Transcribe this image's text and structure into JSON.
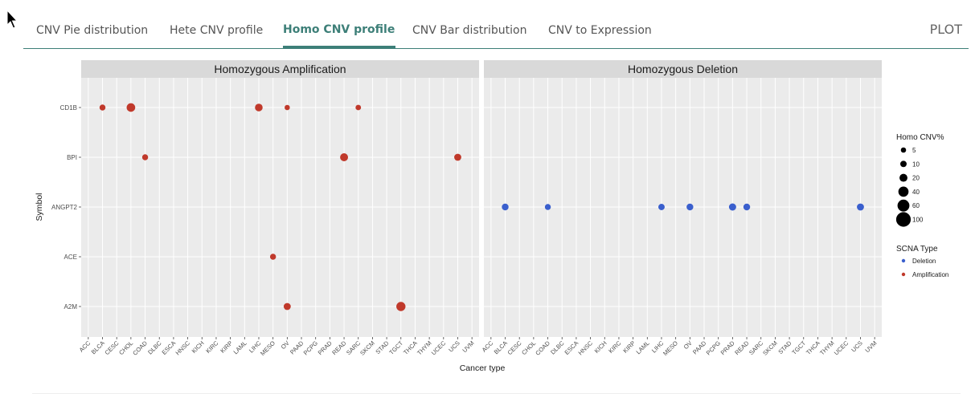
{
  "tabs": [
    {
      "label": "CNV Pie distribution"
    },
    {
      "label": "Hete CNV profile"
    },
    {
      "label": "Homo CNV profile",
      "active": true
    },
    {
      "label": "CNV Bar distribution"
    },
    {
      "label": "CNV to Expression"
    }
  ],
  "tab_bar_title": "PLOT",
  "colors": {
    "accent": "#3d7f78",
    "amplification": "#c0392b",
    "deletion": "#3a5fcd"
  },
  "chart_data": {
    "type": "scatter",
    "xlabel": "Cancer type",
    "ylabel": "Symbol",
    "facets": [
      "Homozygous Amplification",
      "Homozygous Deletion"
    ],
    "x_categories": [
      "ACC",
      "BLCA",
      "CESC",
      "CHOL",
      "COAD",
      "DLBC",
      "ESCA",
      "HNSC",
      "KICH",
      "KIRC",
      "KIRP",
      "LAML",
      "LIHC",
      "MESO",
      "OV",
      "PAAD",
      "PCPG",
      "PRAD",
      "READ",
      "SARC",
      "SKCM",
      "STAD",
      "TGCT",
      "THCA",
      "THYM",
      "UCEC",
      "UCS",
      "UVM"
    ],
    "y_categories": [
      "A2M",
      "ACE",
      "ANGPT2",
      "BPI",
      "CD1B"
    ],
    "size_legend": {
      "title": "Homo CNV%",
      "values": [
        5,
        10,
        20,
        40,
        60,
        100
      ]
    },
    "color_legend": {
      "title": "SCNA Type",
      "entries": [
        "Deletion",
        "Amplification"
      ]
    },
    "points": [
      {
        "facet": 0,
        "x": "BLCA",
        "y": "CD1B",
        "size": 8
      },
      {
        "facet": 0,
        "x": "CHOL",
        "y": "CD1B",
        "size": 25
      },
      {
        "facet": 0,
        "x": "LIHC",
        "y": "CD1B",
        "size": 18
      },
      {
        "facet": 0,
        "x": "OV",
        "y": "CD1B",
        "size": 5
      },
      {
        "facet": 0,
        "x": "SARC",
        "y": "CD1B",
        "size": 6
      },
      {
        "facet": 0,
        "x": "COAD",
        "y": "BPI",
        "size": 8
      },
      {
        "facet": 0,
        "x": "READ",
        "y": "BPI",
        "size": 20
      },
      {
        "facet": 0,
        "x": "UCS",
        "y": "BPI",
        "size": 14
      },
      {
        "facet": 0,
        "x": "MESO",
        "y": "ACE",
        "size": 8
      },
      {
        "facet": 0,
        "x": "OV",
        "y": "A2M",
        "size": 14
      },
      {
        "facet": 0,
        "x": "TGCT",
        "y": "A2M",
        "size": 30
      },
      {
        "facet": 1,
        "x": "BLCA",
        "y": "ANGPT2",
        "size": 12
      },
      {
        "facet": 1,
        "x": "COAD",
        "y": "ANGPT2",
        "size": 8
      },
      {
        "facet": 1,
        "x": "LIHC",
        "y": "ANGPT2",
        "size": 10
      },
      {
        "facet": 1,
        "x": "OV",
        "y": "ANGPT2",
        "size": 12
      },
      {
        "facet": 1,
        "x": "PRAD",
        "y": "ANGPT2",
        "size": 15
      },
      {
        "facet": 1,
        "x": "READ",
        "y": "ANGPT2",
        "size": 12
      },
      {
        "facet": 1,
        "x": "UCS",
        "y": "ANGPT2",
        "size": 14
      }
    ]
  }
}
